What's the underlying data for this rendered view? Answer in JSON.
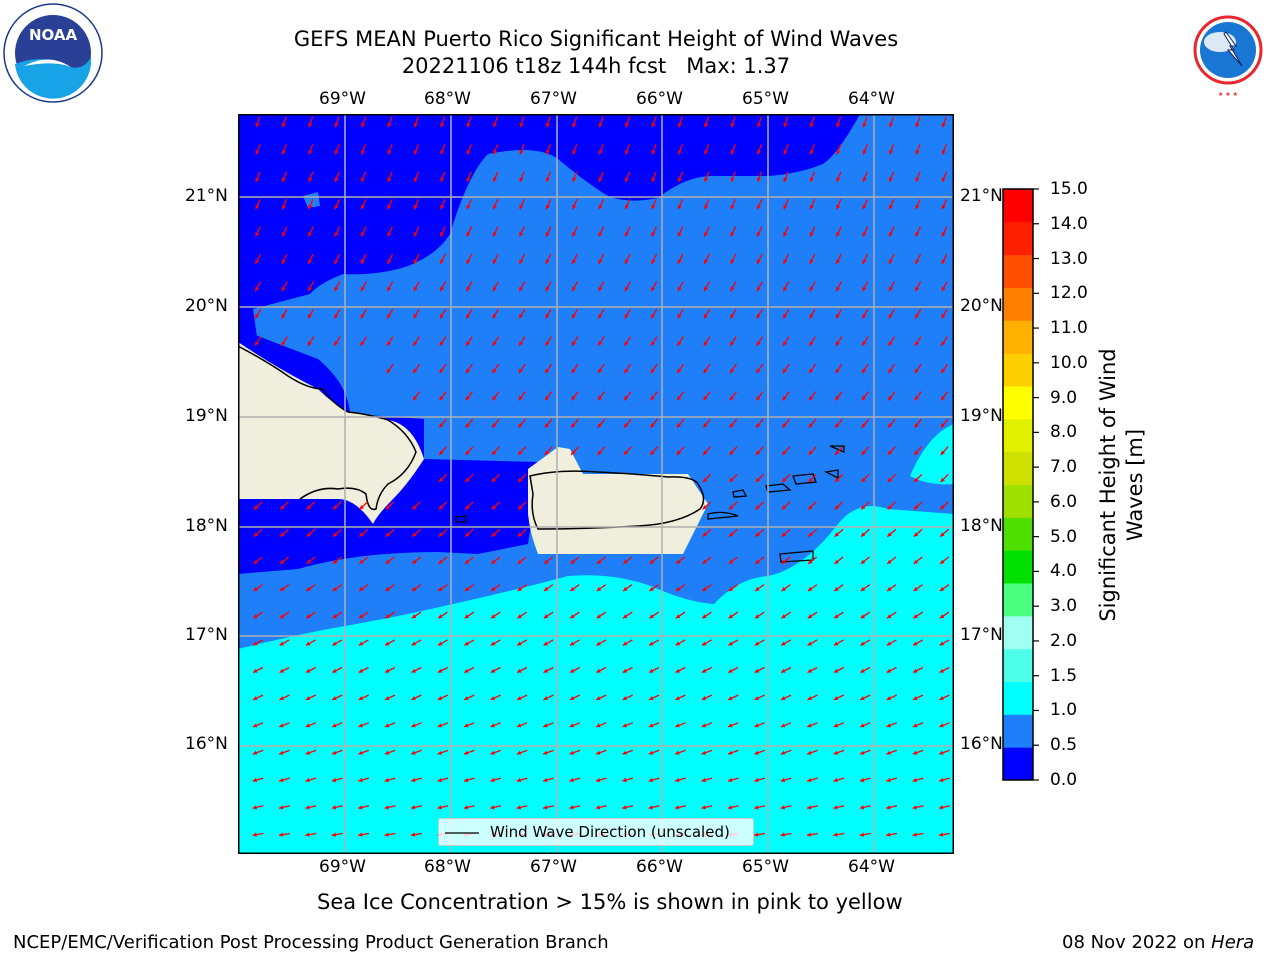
{
  "title_line1": "GEFS MEAN Puerto Rico Significant Height of Wind Waves",
  "title_line2": "20221106 t18z 144h fcst   Max: 1.37",
  "logos": {
    "left": "noaa-logo",
    "right": "national-weather-service-logo"
  },
  "map": {
    "lon_labels": [
      "69°W",
      "68°W",
      "67°W",
      "66°W",
      "65°W",
      "64°W"
    ],
    "lat_labels": [
      "21°N",
      "20°N",
      "19°N",
      "18°N",
      "17°N",
      "16°N"
    ],
    "legend_label": "Wind Wave Direction (unscaled)",
    "vector_color": "#ff0000",
    "land_color": "#f0eedc"
  },
  "colorbar": {
    "label": "Significant Height of Wind Waves [m]",
    "ticks": [
      "15.0",
      "14.0",
      "13.0",
      "12.0",
      "11.0",
      "10.0",
      "9.0",
      "8.0",
      "7.0",
      "6.0",
      "5.0",
      "4.0",
      "3.0",
      "2.0",
      "1.5",
      "1.0",
      "0.5",
      "0.0"
    ],
    "colors": [
      "#0000ff",
      "#1e7ff8",
      "#00ffff",
      "#4dffe8",
      "#a0fff0",
      "#4dff80",
      "#00e000",
      "#50e000",
      "#a0e000",
      "#cde000",
      "#e0f000",
      "#ffff00",
      "#ffd000",
      "#ffb000",
      "#ff8000",
      "#ff5000",
      "#ff2000",
      "#ff0000"
    ]
  },
  "note": "Sea Ice Concentration > 15% is shown in pink to yellow",
  "footer_left": "NCEP/EMC/Verification Post Processing Product Generation Branch",
  "footer_date": "08 Nov 2022 on",
  "footer_host": "Hera"
}
